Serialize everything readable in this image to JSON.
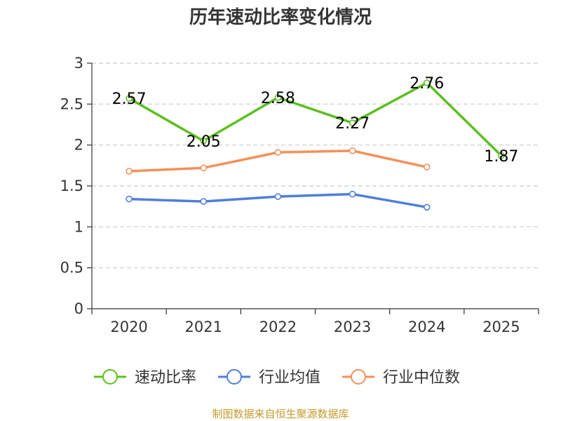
{
  "chart_data": {
    "type": "line",
    "title": "历年速动比率变化情况",
    "categories": [
      "2020",
      "2021",
      "2022",
      "2023",
      "2024",
      "2025"
    ],
    "y_ticks": [
      "0",
      "0.5",
      "1",
      "1.5",
      "2",
      "2.5",
      "3"
    ],
    "ylim": [
      0,
      3
    ],
    "grid": true,
    "legend_position": "bottom",
    "series": [
      {
        "name": "速动比率",
        "color": "#5cbf1f",
        "values": [
          2.57,
          2.05,
          2.58,
          2.27,
          2.76,
          1.87
        ],
        "labels": [
          "2.57",
          "2.05",
          "2.58",
          "2.27",
          "2.76",
          "1.87"
        ],
        "show_labels": true
      },
      {
        "name": "行业均值",
        "color": "#4f7fd9",
        "values": [
          1.34,
          1.31,
          1.37,
          1.4,
          1.24,
          null
        ],
        "show_labels": false
      },
      {
        "name": "行业中位数",
        "color": "#f5905a",
        "values": [
          1.68,
          1.72,
          1.91,
          1.93,
          1.73,
          null
        ],
        "show_labels": false
      }
    ],
    "source": "制图数据来自恒生聚源数据库"
  }
}
